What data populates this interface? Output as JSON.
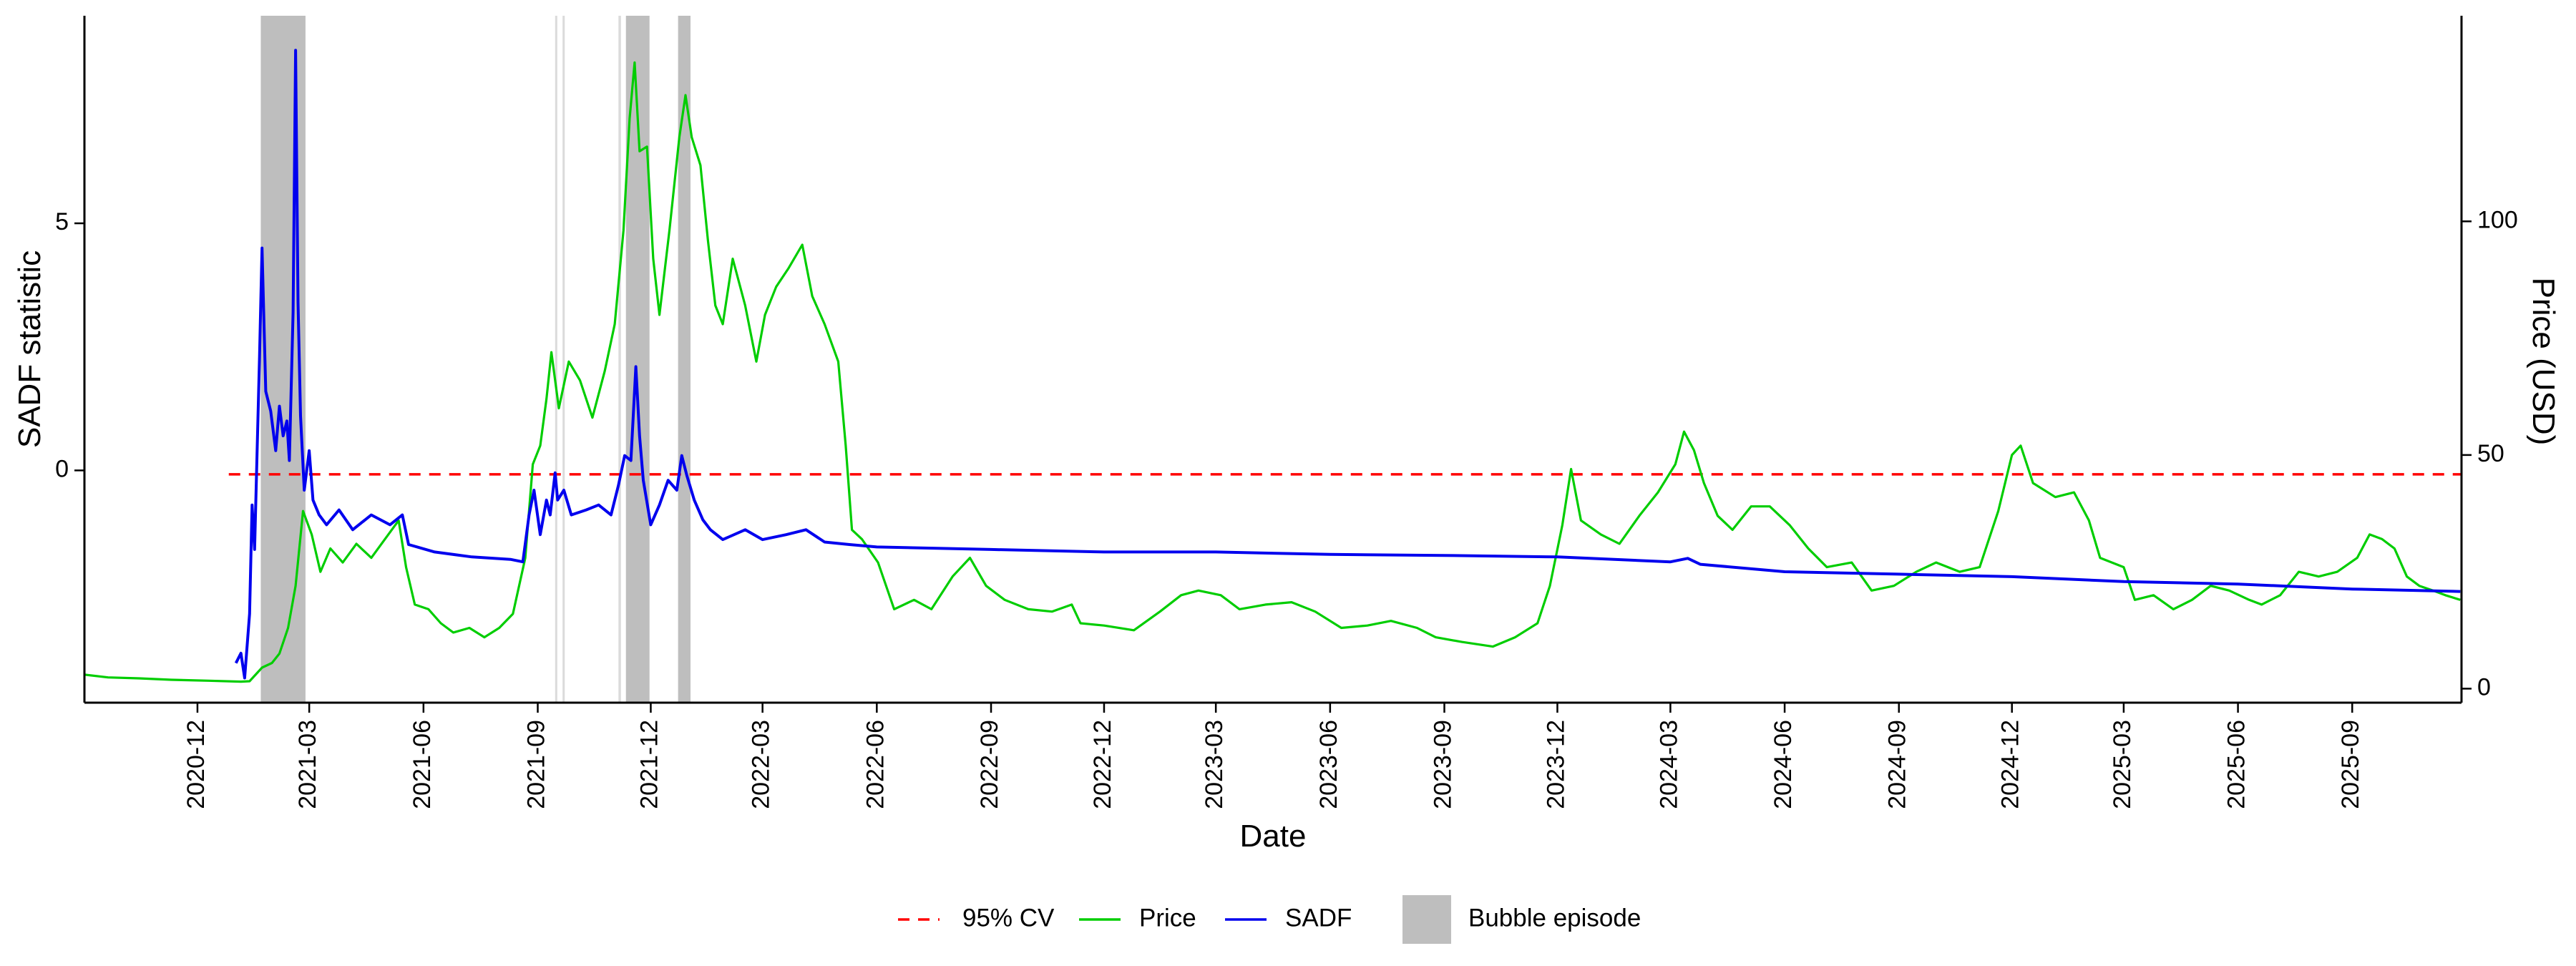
{
  "chart_data": {
    "type": "line",
    "xlabel": "Date",
    "ylabel_left": "SADF statistic",
    "ylabel_right": "Price (USD)",
    "x_range": [
      "2020-09-01",
      "2025-11-28"
    ],
    "y_left_range": [
      -4.7,
      9.2
    ],
    "y_right_range": [
      -3,
      144
    ],
    "x_ticks": [
      "2020-12",
      "2021-03",
      "2021-06",
      "2021-09",
      "2021-12",
      "2022-03",
      "2022-06",
      "2022-09",
      "2022-12",
      "2023-03",
      "2023-06",
      "2023-09",
      "2023-12",
      "2024-03",
      "2024-06",
      "2024-09",
      "2024-12",
      "2025-03",
      "2025-06",
      "2025-09"
    ],
    "y_left_ticks": [
      0,
      5
    ],
    "y_right_ticks": [
      0,
      50,
      100
    ],
    "critical_value": -0.08,
    "bubble_episodes": [
      {
        "start": "2021-01-21",
        "end": "2021-02-26"
      },
      {
        "start": "2021-09-15",
        "end": "2021-09-16"
      },
      {
        "start": "2021-09-21",
        "end": "2021-09-22"
      },
      {
        "start": "2021-11-05",
        "end": "2021-11-07"
      },
      {
        "start": "2021-11-11",
        "end": "2021-11-30"
      },
      {
        "start": "2021-12-23",
        "end": "2022-01-02"
      }
    ],
    "series": [
      {
        "name": "Price",
        "color": "#00cd00",
        "axis": "right",
        "points": [
          [
            "2020-09-01",
            3
          ],
          [
            "2020-09-20",
            2.4
          ],
          [
            "2020-10-15",
            2.2
          ],
          [
            "2020-11-10",
            1.9
          ],
          [
            "2020-12-10",
            1.7
          ],
          [
            "2021-01-05",
            1.5
          ],
          [
            "2021-01-12",
            1.6
          ],
          [
            "2021-01-22",
            4.5
          ],
          [
            "2021-01-30",
            5.5
          ],
          [
            "2021-02-05",
            7.5
          ],
          [
            "2021-02-12",
            13
          ],
          [
            "2021-02-18",
            22
          ],
          [
            "2021-02-24",
            38
          ],
          [
            "2021-03-03",
            33
          ],
          [
            "2021-03-10",
            25
          ],
          [
            "2021-03-18",
            30
          ],
          [
            "2021-03-28",
            27
          ],
          [
            "2021-04-08",
            31
          ],
          [
            "2021-04-20",
            28
          ],
          [
            "2021-05-01",
            32
          ],
          [
            "2021-05-12",
            36
          ],
          [
            "2021-05-18",
            26
          ],
          [
            "2021-05-25",
            18
          ],
          [
            "2021-06-05",
            17
          ],
          [
            "2021-06-15",
            14
          ],
          [
            "2021-06-25",
            12
          ],
          [
            "2021-07-08",
            13
          ],
          [
            "2021-07-20",
            11
          ],
          [
            "2021-08-01",
            13
          ],
          [
            "2021-08-12",
            16
          ],
          [
            "2021-08-22",
            28
          ],
          [
            "2021-08-28",
            48
          ],
          [
            "2021-09-03",
            52
          ],
          [
            "2021-09-08",
            62
          ],
          [
            "2021-09-12",
            72
          ],
          [
            "2021-09-18",
            60
          ],
          [
            "2021-09-26",
            70
          ],
          [
            "2021-10-05",
            66
          ],
          [
            "2021-10-15",
            58
          ],
          [
            "2021-10-25",
            68
          ],
          [
            "2021-11-02",
            78
          ],
          [
            "2021-11-09",
            98
          ],
          [
            "2021-11-14",
            122
          ],
          [
            "2021-11-18",
            134
          ],
          [
            "2021-11-22",
            115
          ],
          [
            "2021-11-28",
            116
          ],
          [
            "2021-12-03",
            92
          ],
          [
            "2021-12-08",
            80
          ],
          [
            "2021-12-16",
            98
          ],
          [
            "2021-12-24",
            118
          ],
          [
            "2021-12-29",
            127
          ],
          [
            "2022-01-03",
            118
          ],
          [
            "2022-01-10",
            112
          ],
          [
            "2022-01-16",
            96
          ],
          [
            "2022-01-22",
            82
          ],
          [
            "2022-01-28",
            78
          ],
          [
            "2022-02-05",
            92
          ],
          [
            "2022-02-15",
            82
          ],
          [
            "2022-02-24",
            70
          ],
          [
            "2022-03-03",
            80
          ],
          [
            "2022-03-12",
            86
          ],
          [
            "2022-03-22",
            90
          ],
          [
            "2022-04-02",
            95
          ],
          [
            "2022-04-10",
            84
          ],
          [
            "2022-04-20",
            78
          ],
          [
            "2022-05-01",
            70
          ],
          [
            "2022-05-07",
            52
          ],
          [
            "2022-05-12",
            34
          ],
          [
            "2022-05-20",
            32
          ],
          [
            "2022-06-02",
            27
          ],
          [
            "2022-06-15",
            17
          ],
          [
            "2022-07-01",
            19
          ],
          [
            "2022-07-15",
            17
          ],
          [
            "2022-08-01",
            24
          ],
          [
            "2022-08-15",
            28
          ],
          [
            "2022-08-28",
            22
          ],
          [
            "2022-09-12",
            19
          ],
          [
            "2022-10-01",
            17
          ],
          [
            "2022-10-20",
            16.5
          ],
          [
            "2022-11-05",
            18
          ],
          [
            "2022-11-12",
            14
          ],
          [
            "2022-12-01",
            13.5
          ],
          [
            "2022-12-25",
            12.5
          ],
          [
            "2023-01-15",
            16.5
          ],
          [
            "2023-02-01",
            20
          ],
          [
            "2023-02-15",
            21
          ],
          [
            "2023-03-05",
            20
          ],
          [
            "2023-03-20",
            17
          ],
          [
            "2023-04-10",
            18
          ],
          [
            "2023-05-01",
            18.5
          ],
          [
            "2023-05-20",
            16.5
          ],
          [
            "2023-06-10",
            13
          ],
          [
            "2023-07-01",
            13.5
          ],
          [
            "2023-07-20",
            14.5
          ],
          [
            "2023-08-10",
            13
          ],
          [
            "2023-08-25",
            11
          ],
          [
            "2023-09-15",
            10
          ],
          [
            "2023-10-10",
            9
          ],
          [
            "2023-10-28",
            11
          ],
          [
            "2023-11-15",
            14
          ],
          [
            "2023-11-25",
            22
          ],
          [
            "2023-12-05",
            35
          ],
          [
            "2023-12-12",
            47
          ],
          [
            "2023-12-20",
            36
          ],
          [
            "2024-01-05",
            33
          ],
          [
            "2024-01-20",
            31
          ],
          [
            "2024-02-05",
            37
          ],
          [
            "2024-02-20",
            42
          ],
          [
            "2024-03-05",
            48
          ],
          [
            "2024-03-12",
            55
          ],
          [
            "2024-03-20",
            51
          ],
          [
            "2024-03-28",
            44
          ],
          [
            "2024-04-08",
            37
          ],
          [
            "2024-04-20",
            34
          ],
          [
            "2024-05-05",
            39
          ],
          [
            "2024-05-20",
            39
          ],
          [
            "2024-06-05",
            35
          ],
          [
            "2024-06-20",
            30
          ],
          [
            "2024-07-05",
            26
          ],
          [
            "2024-07-25",
            27
          ],
          [
            "2024-08-10",
            21
          ],
          [
            "2024-08-28",
            22
          ],
          [
            "2024-09-15",
            25
          ],
          [
            "2024-10-01",
            27
          ],
          [
            "2024-10-20",
            25
          ],
          [
            "2024-11-05",
            26
          ],
          [
            "2024-11-20",
            38
          ],
          [
            "2024-12-01",
            50
          ],
          [
            "2024-12-08",
            52
          ],
          [
            "2024-12-18",
            44
          ],
          [
            "2025-01-05",
            41
          ],
          [
            "2025-01-20",
            42
          ],
          [
            "2025-02-01",
            36
          ],
          [
            "2025-02-10",
            28
          ],
          [
            "2025-03-01",
            26
          ],
          [
            "2025-03-10",
            19
          ],
          [
            "2025-03-25",
            20
          ],
          [
            "2025-04-10",
            17
          ],
          [
            "2025-04-25",
            19
          ],
          [
            "2025-05-10",
            22
          ],
          [
            "2025-05-25",
            21
          ],
          [
            "2025-06-10",
            19
          ],
          [
            "2025-06-20",
            18
          ],
          [
            "2025-07-05",
            20
          ],
          [
            "2025-07-20",
            25
          ],
          [
            "2025-08-05",
            24
          ],
          [
            "2025-08-20",
            25
          ],
          [
            "2025-09-05",
            28
          ],
          [
            "2025-09-15",
            33
          ],
          [
            "2025-09-25",
            32
          ],
          [
            "2025-10-05",
            30
          ],
          [
            "2025-10-15",
            24
          ],
          [
            "2025-10-25",
            22
          ],
          [
            "2025-11-05",
            21
          ],
          [
            "2025-11-15",
            20
          ],
          [
            "2025-11-27",
            19
          ]
        ]
      },
      {
        "name": "SADF",
        "color": "#0000ee",
        "axis": "left",
        "points": [
          [
            "2021-01-01",
            -3.9
          ],
          [
            "2021-01-05",
            -3.7
          ],
          [
            "2021-01-08",
            -4.2
          ],
          [
            "2021-01-12",
            -2.9
          ],
          [
            "2021-01-14",
            -0.7
          ],
          [
            "2021-01-16",
            -1.6
          ],
          [
            "2021-01-20",
            2.3
          ],
          [
            "2021-01-22",
            4.5
          ],
          [
            "2021-01-25",
            1.6
          ],
          [
            "2021-01-29",
            1.2
          ],
          [
            "2021-02-02",
            0.4
          ],
          [
            "2021-02-05",
            1.3
          ],
          [
            "2021-02-08",
            0.7
          ],
          [
            "2021-02-11",
            1.0
          ],
          [
            "2021-02-13",
            0.2
          ],
          [
            "2021-02-16",
            3.2
          ],
          [
            "2021-02-18",
            8.5
          ],
          [
            "2021-02-20",
            3.4
          ],
          [
            "2021-02-22",
            1.1
          ],
          [
            "2021-02-25",
            -0.4
          ],
          [
            "2021-03-01",
            0.4
          ],
          [
            "2021-03-04",
            -0.6
          ],
          [
            "2021-03-09",
            -0.9
          ],
          [
            "2021-03-15",
            -1.1
          ],
          [
            "2021-03-25",
            -0.8
          ],
          [
            "2021-04-05",
            -1.2
          ],
          [
            "2021-04-20",
            -0.9
          ],
          [
            "2021-05-05",
            -1.1
          ],
          [
            "2021-05-15",
            -0.9
          ],
          [
            "2021-05-20",
            -1.5
          ],
          [
            "2021-06-10",
            -1.65
          ],
          [
            "2021-07-10",
            -1.75
          ],
          [
            "2021-08-10",
            -1.8
          ],
          [
            "2021-08-20",
            -1.85
          ],
          [
            "2021-08-25",
            -0.9
          ],
          [
            "2021-08-29",
            -0.4
          ],
          [
            "2021-09-03",
            -1.3
          ],
          [
            "2021-09-08",
            -0.6
          ],
          [
            "2021-09-11",
            -0.9
          ],
          [
            "2021-09-15",
            -0.05
          ],
          [
            "2021-09-17",
            -0.6
          ],
          [
            "2021-09-22",
            -0.4
          ],
          [
            "2021-09-28",
            -0.9
          ],
          [
            "2021-10-10",
            -0.8
          ],
          [
            "2021-10-20",
            -0.7
          ],
          [
            "2021-10-30",
            -0.9
          ],
          [
            "2021-11-05",
            -0.3
          ],
          [
            "2021-11-10",
            0.3
          ],
          [
            "2021-11-15",
            0.2
          ],
          [
            "2021-11-19",
            2.1
          ],
          [
            "2021-11-22",
            0.7
          ],
          [
            "2021-11-25",
            -0.2
          ],
          [
            "2021-12-01",
            -1.1
          ],
          [
            "2021-12-08",
            -0.7
          ],
          [
            "2021-12-15",
            -0.2
          ],
          [
            "2021-12-22",
            -0.4
          ],
          [
            "2021-12-26",
            0.3
          ],
          [
            "2021-12-30",
            -0.1
          ],
          [
            "2022-01-05",
            -0.6
          ],
          [
            "2022-01-12",
            -1.0
          ],
          [
            "2022-01-18",
            -1.2
          ],
          [
            "2022-01-28",
            -1.4
          ],
          [
            "2022-02-15",
            -1.2
          ],
          [
            "2022-03-01",
            -1.4
          ],
          [
            "2022-03-20",
            -1.3
          ],
          [
            "2022-04-05",
            -1.2
          ],
          [
            "2022-04-20",
            -1.45
          ],
          [
            "2022-05-10",
            -1.5
          ],
          [
            "2022-06-01",
            -1.55
          ],
          [
            "2022-09-01",
            -1.6
          ],
          [
            "2022-12-01",
            -1.65
          ],
          [
            "2023-03-01",
            -1.65
          ],
          [
            "2023-06-01",
            -1.7
          ],
          [
            "2023-09-01",
            -1.72
          ],
          [
            "2023-12-01",
            -1.75
          ],
          [
            "2024-03-01",
            -1.85
          ],
          [
            "2024-03-15",
            -1.78
          ],
          [
            "2024-03-25",
            -1.9
          ],
          [
            "2024-06-01",
            -2.05
          ],
          [
            "2024-09-01",
            -2.1
          ],
          [
            "2024-12-01",
            -2.15
          ],
          [
            "2025-03-01",
            -2.25
          ],
          [
            "2025-06-01",
            -2.3
          ],
          [
            "2025-09-01",
            -2.4
          ],
          [
            "2025-11-27",
            -2.45
          ]
        ]
      }
    ],
    "legend": {
      "position": "bottom",
      "items": [
        {
          "label": "95% CV",
          "color": "#ff0000",
          "style": "dashed"
        },
        {
          "label": "Price",
          "color": "#00cd00",
          "style": "line"
        },
        {
          "label": "SADF",
          "color": "#0000ee",
          "style": "line"
        },
        {
          "label": "Bubble episode",
          "color": "#bebebe",
          "style": "fill"
        }
      ]
    }
  }
}
